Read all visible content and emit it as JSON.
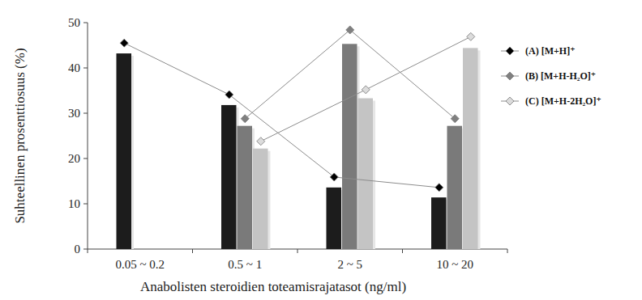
{
  "chart_data": {
    "type": "bar",
    "x_label": "Anabolisten steroidien toteamisrajatasot (ng/ml)",
    "y_label": "Suhteellinen prosenttiosuus (%)",
    "categories": [
      "0.05 ~ 0.2",
      "0.5 ~ 1",
      "2 ~ 5",
      "10 ~ 20"
    ],
    "series": [
      {
        "type": "bar",
        "color": "#1c1c1c",
        "values": [
          43.2,
          31.8,
          13.6,
          11.4
        ]
      },
      {
        "type": "bar",
        "color": "#7a7a7a",
        "values": [
          null,
          27.2,
          45.3,
          27.2
        ]
      },
      {
        "type": "bar",
        "color": "#c4c4c4",
        "values": [
          null,
          22.2,
          33.3,
          44.4
        ]
      },
      {
        "type": "line",
        "name": "(A) [M+H]⁺",
        "color": "#000000",
        "marker": "diamond",
        "values": [
          45.5,
          34.1,
          15.9,
          13.6
        ]
      },
      {
        "type": "line",
        "name": "(B) [M+H-H₂O]⁺",
        "color": "#808080",
        "marker": "diamond",
        "values": [
          null,
          28.8,
          48.4,
          28.8
        ]
      },
      {
        "type": "line",
        "name": "(C) [M+H-2H₂O]⁺",
        "color": "#dcdcdc",
        "marker": "diamond",
        "values": [
          null,
          23.8,
          35.2,
          46.9
        ]
      }
    ],
    "ylim": [
      0,
      50
    ],
    "yticks": [
      0,
      10,
      20,
      30,
      40,
      50
    ],
    "legend": "right",
    "grid": false
  }
}
